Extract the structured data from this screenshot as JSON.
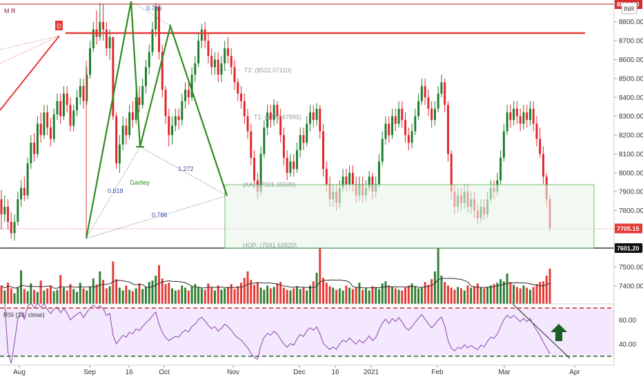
{
  "chart_data": {
    "type": "candlestick",
    "symbol_marker": "M R",
    "currency_badge": "INR",
    "x_tick_labels": [
      "Aug",
      "Sep",
      "16",
      "Oct",
      "Nov",
      "Dec",
      "16",
      "2021",
      "Feb",
      "Mar",
      "Apr"
    ],
    "price_axis": {
      "ticks": [
        "8800.00",
        "8700.00",
        "8600.00",
        "8500.00",
        "8400.00",
        "8300.00",
        "8200.00",
        "8100.00",
        "8000.00",
        "7900.00",
        "7800.00",
        "7600.00",
        "7500.00",
        "7400.00"
      ],
      "range": [
        7300,
        8950
      ]
    },
    "price_badges": [
      {
        "value": "8894.00",
        "price": 8894,
        "color": "#d32f2f"
      },
      {
        "value": "7705.15",
        "price": 7705.15,
        "color": "#e53935"
      },
      {
        "value": "7601.20",
        "price": 7601.2,
        "color": "#111111"
      }
    ],
    "candles": [
      [
        7860,
        7780,
        7910,
        7700
      ],
      [
        7780,
        7820,
        7880,
        7740
      ],
      [
        7820,
        7740,
        7860,
        7700
      ],
      [
        7740,
        7680,
        7790,
        7650
      ],
      [
        7680,
        7740,
        7780,
        7640
      ],
      [
        7740,
        7860,
        7900,
        7720
      ],
      [
        7860,
        7920,
        7960,
        7820
      ],
      [
        7920,
        7880,
        7980,
        7850
      ],
      [
        7880,
        8050,
        8080,
        7860
      ],
      [
        8050,
        8160,
        8200,
        8020
      ],
      [
        8160,
        8100,
        8210,
        8060
      ],
      [
        8100,
        8260,
        8300,
        8080
      ],
      [
        8260,
        8200,
        8320,
        8160
      ],
      [
        8200,
        8320,
        8360,
        8180
      ],
      [
        8320,
        8240,
        8360,
        8200
      ],
      [
        8240,
        8180,
        8290,
        8140
      ],
      [
        8180,
        8310,
        8340,
        8160
      ],
      [
        8310,
        8380,
        8420,
        8280
      ],
      [
        8380,
        8300,
        8420,
        8260
      ],
      [
        8300,
        8420,
        8460,
        8280
      ],
      [
        8420,
        8360,
        8460,
        8320
      ],
      [
        8360,
        8250,
        8400,
        8220
      ],
      [
        8250,
        8330,
        8360,
        8220
      ],
      [
        8330,
        8400,
        8440,
        8300
      ],
      [
        8400,
        8460,
        8500,
        8360
      ],
      [
        8460,
        8380,
        8500,
        8340
      ],
      [
        8380,
        8520,
        8560,
        8360
      ],
      [
        8520,
        8660,
        8700,
        8500
      ],
      [
        8660,
        8760,
        8800,
        8640
      ],
      [
        8760,
        8720,
        8860,
        8680
      ],
      [
        8720,
        8800,
        8900,
        8700
      ],
      [
        8800,
        8760,
        8894,
        8700
      ],
      [
        8760,
        8660,
        8800,
        8620
      ],
      [
        8660,
        8720,
        8760,
        8600
      ],
      [
        8720,
        8300,
        8720,
        8280
      ],
      [
        8300,
        8050,
        8320,
        8020
      ],
      [
        8050,
        8150,
        8200,
        8000
      ],
      [
        8150,
        8250,
        8300,
        8120
      ],
      [
        8250,
        8200,
        8290,
        8150
      ],
      [
        8200,
        8320,
        8360,
        8180
      ],
      [
        8320,
        8280,
        8380,
        8240
      ],
      [
        8280,
        8400,
        8440,
        8260
      ],
      [
        8400,
        8360,
        8460,
        8320
      ],
      [
        8360,
        8460,
        8500,
        8340
      ],
      [
        8460,
        8560,
        8600,
        8420
      ],
      [
        8560,
        8640,
        8680,
        8520
      ],
      [
        8640,
        8760,
        8800,
        8620
      ],
      [
        8760,
        8880,
        8900,
        8720
      ],
      [
        8880,
        8640,
        8894,
        8600
      ],
      [
        8640,
        8440,
        8680,
        8400
      ],
      [
        8440,
        8300,
        8460,
        8260
      ],
      [
        8300,
        8200,
        8340,
        8140
      ],
      [
        8200,
        8250,
        8300,
        8150
      ],
      [
        8250,
        8300,
        8340,
        8220
      ],
      [
        8300,
        8280,
        8340,
        8230
      ],
      [
        8280,
        8380,
        8420,
        8250
      ],
      [
        8380,
        8440,
        8480,
        8340
      ],
      [
        8440,
        8400,
        8480,
        8360
      ],
      [
        8400,
        8520,
        8560,
        8380
      ],
      [
        8520,
        8580,
        8620,
        8480
      ],
      [
        8580,
        8700,
        8740,
        8560
      ],
      [
        8700,
        8760,
        8790,
        8660
      ],
      [
        8760,
        8700,
        8800,
        8660
      ],
      [
        8700,
        8620,
        8740,
        8580
      ],
      [
        8620,
        8560,
        8660,
        8520
      ],
      [
        8560,
        8600,
        8640,
        8520
      ],
      [
        8600,
        8520,
        8640,
        8480
      ],
      [
        8520,
        8580,
        8620,
        8480
      ],
      [
        8580,
        8660,
        8700,
        8540
      ],
      [
        8660,
        8620,
        8720,
        8580
      ],
      [
        8620,
        8560,
        8660,
        8520
      ],
      [
        8560,
        8480,
        8600,
        8440
      ],
      [
        8480,
        8420,
        8500,
        8380
      ],
      [
        8420,
        8380,
        8460,
        8340
      ],
      [
        8380,
        8300,
        8420,
        8260
      ],
      [
        8300,
        8220,
        8340,
        8180
      ],
      [
        8220,
        8080,
        8260,
        8040
      ],
      [
        8080,
        7960,
        8120,
        7920
      ],
      [
        7960,
        7900,
        8000,
        7860
      ],
      [
        7900,
        8100,
        8140,
        7880
      ],
      [
        8100,
        8240,
        8280,
        8080
      ],
      [
        8240,
        8320,
        8360,
        8200
      ],
      [
        8320,
        8280,
        8360,
        8240
      ],
      [
        8280,
        8360,
        8390,
        8250
      ],
      [
        8360,
        8300,
        8380,
        8260
      ],
      [
        8300,
        8200,
        8340,
        8160
      ],
      [
        8200,
        8080,
        8240,
        8040
      ],
      [
        8080,
        8000,
        8120,
        7960
      ],
      [
        8000,
        8060,
        8100,
        7980
      ],
      [
        8060,
        8020,
        8100,
        7980
      ],
      [
        8020,
        8120,
        8160,
        8000
      ],
      [
        8120,
        8200,
        8240,
        8080
      ],
      [
        8200,
        8160,
        8240,
        8120
      ],
      [
        8160,
        8260,
        8300,
        8140
      ],
      [
        8260,
        8320,
        8360,
        8220
      ],
      [
        8320,
        8280,
        8360,
        8240
      ],
      [
        8280,
        8340,
        8370,
        8250
      ],
      [
        8340,
        8220,
        8360,
        8180
      ],
      [
        8220,
        8020,
        8260,
        7980
      ],
      [
        8020,
        7940,
        8060,
        7900
      ],
      [
        7940,
        7860,
        7980,
        7820
      ],
      [
        7860,
        7900,
        7940,
        7820
      ],
      [
        7900,
        7840,
        7940,
        7800
      ],
      [
        7840,
        7920,
        7960,
        7810
      ],
      [
        7920,
        7980,
        8020,
        7900
      ],
      [
        7980,
        7940,
        8020,
        7900
      ],
      [
        7940,
        8000,
        8040,
        7910
      ],
      [
        8000,
        7940,
        8040,
        7900
      ],
      [
        7940,
        7880,
        7980,
        7840
      ],
      [
        7880,
        7940,
        7980,
        7850
      ],
      [
        7940,
        7880,
        7980,
        7840
      ],
      [
        7880,
        7920,
        7960,
        7850
      ],
      [
        7920,
        7980,
        8010,
        7900
      ],
      [
        7980,
        7900,
        8000,
        7860
      ],
      [
        7900,
        7940,
        7980,
        7870
      ],
      [
        7940,
        8060,
        8100,
        7920
      ],
      [
        8060,
        8180,
        8220,
        8040
      ],
      [
        8180,
        8260,
        8300,
        8150
      ],
      [
        8260,
        8200,
        8300,
        8160
      ],
      [
        8200,
        8300,
        8340,
        8180
      ],
      [
        8300,
        8260,
        8340,
        8220
      ],
      [
        8260,
        8340,
        8380,
        8240
      ],
      [
        8340,
        8280,
        8380,
        8240
      ],
      [
        8280,
        8200,
        8320,
        8160
      ],
      [
        8200,
        8160,
        8240,
        8120
      ],
      [
        8160,
        8220,
        8260,
        8130
      ],
      [
        8220,
        8300,
        8340,
        8200
      ],
      [
        8300,
        8380,
        8420,
        8280
      ],
      [
        8380,
        8460,
        8500,
        8360
      ],
      [
        8460,
        8400,
        8500,
        8360
      ],
      [
        8400,
        8340,
        8440,
        8300
      ],
      [
        8340,
        8280,
        8380,
        8240
      ],
      [
        8280,
        8340,
        8380,
        8250
      ],
      [
        8340,
        8420,
        8460,
        8320
      ],
      [
        8420,
        8480,
        8520,
        8400
      ],
      [
        8480,
        8360,
        8500,
        8320
      ],
      [
        8360,
        8100,
        8380,
        8060
      ],
      [
        8100,
        7900,
        8120,
        7860
      ],
      [
        7900,
        7820,
        7940,
        7780
      ],
      [
        7820,
        7880,
        7920,
        7790
      ],
      [
        7880,
        7840,
        7920,
        7800
      ],
      [
        7840,
        7900,
        7940,
        7810
      ],
      [
        7900,
        7820,
        7940,
        7790
      ],
      [
        7820,
        7860,
        7900,
        7780
      ],
      [
        7860,
        7800,
        7900,
        7760
      ],
      [
        7800,
        7760,
        7840,
        7730
      ],
      [
        7760,
        7820,
        7860,
        7740
      ],
      [
        7820,
        7780,
        7860,
        7750
      ],
      [
        7780,
        7860,
        7900,
        7760
      ],
      [
        7860,
        7920,
        7960,
        7840
      ],
      [
        7920,
        7900,
        7960,
        7860
      ],
      [
        7900,
        7960,
        8000,
        7880
      ],
      [
        7960,
        8080,
        8120,
        7940
      ],
      [
        8080,
        8220,
        8260,
        8060
      ],
      [
        8220,
        8320,
        8360,
        8200
      ],
      [
        8320,
        8280,
        8360,
        8240
      ],
      [
        8280,
        8340,
        8380,
        8250
      ],
      [
        8340,
        8300,
        8380,
        8260
      ],
      [
        8300,
        8260,
        8340,
        8220
      ],
      [
        8260,
        8320,
        8360,
        8230
      ],
      [
        8320,
        8280,
        8360,
        8240
      ],
      [
        8280,
        8340,
        8380,
        8250
      ],
      [
        8340,
        8260,
        8380,
        8220
      ],
      [
        8260,
        8180,
        8300,
        8140
      ],
      [
        8180,
        8100,
        8240,
        8080
      ],
      [
        8100,
        7980,
        8140,
        7940
      ],
      [
        7980,
        7860,
        8000,
        7820
      ],
      [
        7860,
        7705,
        7880,
        7690
      ]
    ],
    "volume": [
      52,
      38,
      60,
      44,
      30,
      48,
      95,
      42,
      36,
      58,
      40,
      34,
      66,
      38,
      44,
      52,
      36,
      40,
      82,
      46,
      38,
      56,
      42,
      34,
      60,
      44,
      38,
      48,
      72,
      55,
      92,
      68,
      44,
      50,
      120,
      70,
      46,
      38,
      52,
      40,
      36,
      44,
      58,
      42,
      48,
      62,
      66,
      80,
      110,
      72,
      56,
      60,
      44,
      38,
      40,
      52,
      46,
      38,
      50,
      56,
      48,
      44,
      40,
      58,
      46,
      38,
      52,
      40,
      44,
      48,
      56,
      42,
      50,
      60,
      74,
      92,
      68,
      54,
      60,
      46,
      40,
      52,
      44,
      48,
      58,
      62,
      46,
      40,
      38,
      44,
      50,
      42,
      46,
      38,
      52,
      64,
      88,
      160,
      74,
      60,
      50,
      46,
      40,
      44,
      38,
      52,
      46,
      42,
      48,
      60,
      40,
      44,
      38,
      50,
      46,
      42,
      58,
      64,
      52,
      48,
      44,
      40,
      38,
      46,
      52,
      58,
      50,
      44,
      48,
      62,
      54,
      70,
      92,
      158,
      80,
      62,
      52,
      46,
      40,
      48,
      44,
      38,
      52,
      46,
      50,
      58,
      46,
      44,
      48,
      52,
      56,
      60,
      70,
      64,
      86,
      62,
      54,
      48,
      44,
      52,
      46,
      40,
      48,
      56,
      62,
      64,
      80,
      100,
      160
    ],
    "volume_colors": "green when close >= open, red otherwise",
    "rsi": {
      "label": "RSI (14, close)",
      "period": 14,
      "ticks": [
        "60.00",
        "40.00"
      ],
      "upper_band": 70,
      "lower_band": 30
    },
    "annotations": {
      "pattern_name": "Gartley",
      "ratios": [
        "0.786",
        "0.618",
        "1.272",
        "0.786"
      ],
      "levels": [
        {
          "label": "T2: (8522.07110)",
          "price": 8522
        },
        {
          "label": "T1: (8276.87895)",
          "price": 8277
        },
        {
          "label": "(XA): (7921.35530)",
          "price": 7921
        },
        {
          "label": "HOP: (7591.62820)",
          "price": 7592
        }
      ],
      "d_marker": "D",
      "resistance_price": 8745,
      "top_line_price": 8894,
      "support_price": 7601.2
    }
  }
}
